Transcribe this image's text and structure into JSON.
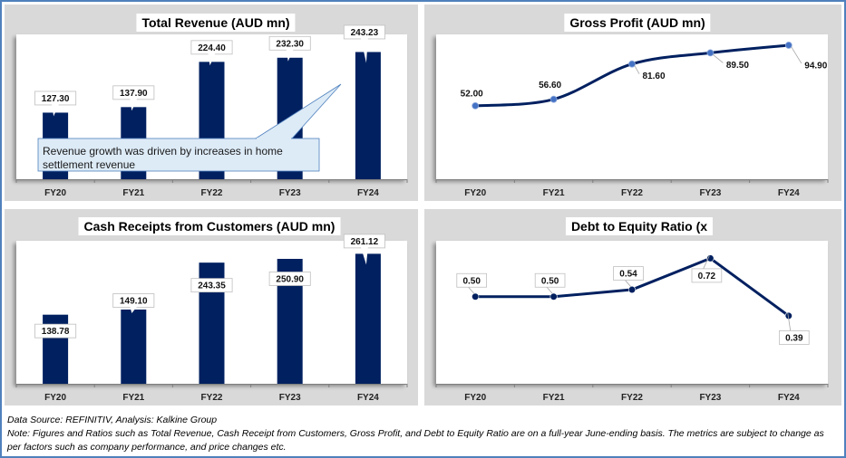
{
  "colors": {
    "frame": "#4F81BD",
    "panel_bg": "#D9D9D9",
    "bar": "#002060",
    "line": "#002060",
    "marker_gp": "#4472C4",
    "callout_fill": "#DDEBF7",
    "callout_border": "#4F81BD"
  },
  "chart_data": [
    {
      "id": "total-revenue",
      "type": "bar",
      "title": "Total Revenue (AUD mn)",
      "categories": [
        "FY20",
        "FY21",
        "FY22",
        "FY23",
        "FY24"
      ],
      "values": [
        127.3,
        137.9,
        224.4,
        232.3,
        243.23
      ],
      "labels": [
        "127.30",
        "137.90",
        "224.40",
        "232.30",
        "243.23"
      ],
      "xlabel": "",
      "ylabel": "",
      "ylim": [
        0,
        270
      ],
      "grid": false,
      "annotation": "Revenue growth was driven by increases in home settlement revenue"
    },
    {
      "id": "gross-profit",
      "type": "line",
      "title": "Gross Profit (AUD mn)",
      "categories": [
        "FY20",
        "FY21",
        "FY22",
        "FY23",
        "FY24"
      ],
      "values": [
        52.0,
        56.6,
        81.6,
        89.5,
        94.9
      ],
      "labels": [
        "52.00",
        "56.60",
        "81.60",
        "89.50",
        "94.90"
      ],
      "xlabel": "",
      "ylabel": "",
      "ylim": [
        0,
        100
      ],
      "smooth": true,
      "grid": false
    },
    {
      "id": "cash-receipts",
      "type": "bar",
      "title": "Cash Receipts from Customers (AUD mn)",
      "categories": [
        "FY20",
        "FY21",
        "FY22",
        "FY23",
        "FY24"
      ],
      "values": [
        138.78,
        149.1,
        243.35,
        250.9,
        261.12
      ],
      "labels": [
        "138.78",
        "149.10",
        "243.35",
        "250.90",
        "261.12"
      ],
      "xlabel": "",
      "ylabel": "",
      "ylim": [
        0,
        280
      ],
      "grid": false
    },
    {
      "id": "debt-to-equity",
      "type": "line",
      "title": "Debt to Equity Ratio (x",
      "categories": [
        "FY20",
        "FY21",
        "FY22",
        "FY23",
        "FY24"
      ],
      "values": [
        0.5,
        0.5,
        0.54,
        0.72,
        0.39
      ],
      "labels": [
        "0.50",
        "0.50",
        "0.54",
        "0.72",
        "0.39"
      ],
      "xlabel": "",
      "ylabel": "",
      "ylim": [
        0,
        0.8
      ],
      "smooth": false,
      "grid": false
    }
  ],
  "footer": {
    "source": "Data Source: REFINITIV, Analysis: Kalkine Group",
    "note": "Note: Figures and Ratios such as Total Revenue, Cash Receipt from Customers, Gross Profit, and Debt to Equity Ratio are on a full-year June-ending basis. The metrics are subject to change as per factors such as company performance, and price changes etc."
  }
}
